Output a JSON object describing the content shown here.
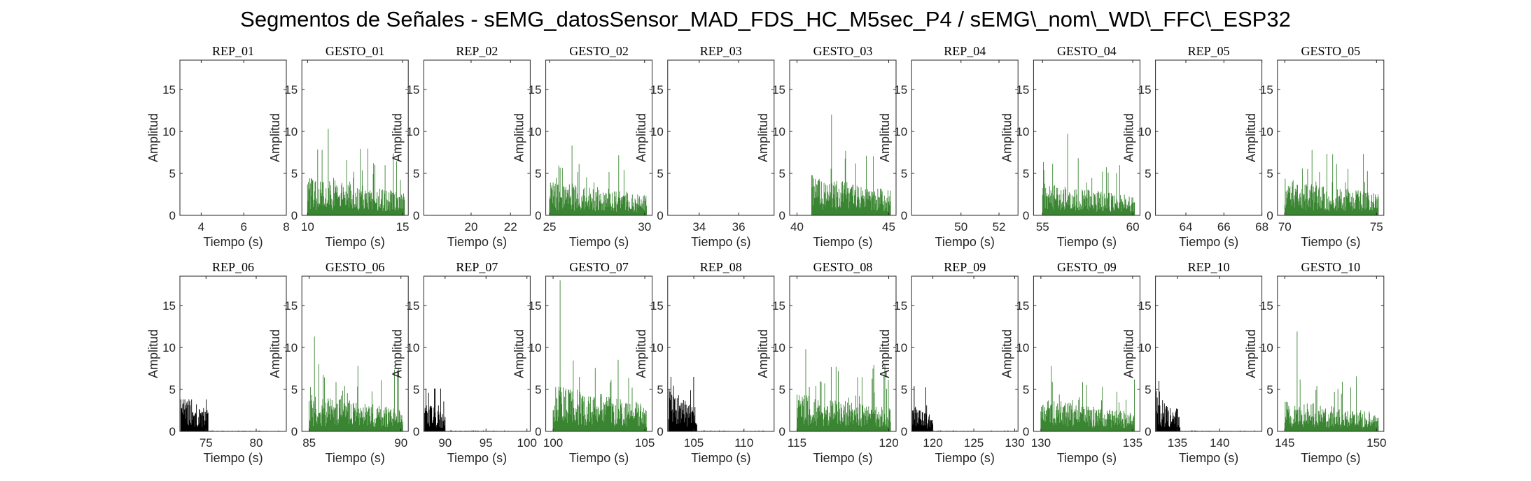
{
  "figure": {
    "title": "Segmentos de Señales - sEMG_datosSensor_MAD_FDS_HC_M5sec_P4 / sEMG\\_nom\\_WD\\_FFC\\_ESP32"
  },
  "colors": {
    "rep": "#000000",
    "gesto": "#3a8532",
    "axis": "#262626"
  },
  "chart_data": [
    {
      "type": "bar",
      "title": "REP_01",
      "kind": "rep",
      "xlabel": "Tiempo (s)",
      "ylabel": "Amplitud",
      "xlim": [
        3,
        8
      ],
      "ylim": [
        0,
        18.5
      ],
      "xticks": [
        4,
        6,
        8
      ],
      "yticks": [
        0,
        5,
        10,
        15
      ],
      "segments": []
    },
    {
      "type": "bar",
      "title": "GESTO_01",
      "kind": "gesto",
      "xlabel": "Tiempo (s)",
      "ylabel": "Amplitud",
      "xlim": [
        9.7,
        15.3
      ],
      "ylim": [
        0,
        18.5
      ],
      "xticks": [
        10,
        15
      ],
      "yticks": [
        0,
        5,
        10,
        15
      ],
      "segments": [
        {
          "x0": 10.0,
          "x1": 15.1,
          "peak": 10.3,
          "mean": 2.6
        }
      ]
    },
    {
      "type": "bar",
      "title": "REP_02",
      "kind": "rep",
      "xlabel": "Tiempo (s)",
      "ylabel": "Amplitud",
      "xlim": [
        17.6,
        23.0
      ],
      "ylim": [
        0,
        18.5
      ],
      "xticks": [
        20,
        22
      ],
      "yticks": [
        0,
        5,
        10,
        15
      ],
      "segments": []
    },
    {
      "type": "bar",
      "title": "GESTO_02",
      "kind": "gesto",
      "xlabel": "Tiempo (s)",
      "ylabel": "Amplitud",
      "xlim": [
        24.8,
        30.4
      ],
      "ylim": [
        0,
        18.5
      ],
      "xticks": [
        25,
        30
      ],
      "yticks": [
        0,
        5,
        10,
        15
      ],
      "segments": [
        {
          "x0": 25.0,
          "x1": 30.1,
          "peak": 8.3,
          "mean": 2.4
        }
      ]
    },
    {
      "type": "bar",
      "title": "REP_03",
      "kind": "rep",
      "xlabel": "Tiempo (s)",
      "ylabel": "Amplitud",
      "xlim": [
        32.4,
        37.8
      ],
      "ylim": [
        0,
        18.5
      ],
      "xticks": [
        34,
        36
      ],
      "yticks": [
        0,
        5,
        10,
        15
      ],
      "segments": []
    },
    {
      "type": "bar",
      "title": "GESTO_03",
      "kind": "gesto",
      "xlabel": "Tiempo (s)",
      "ylabel": "Amplitud",
      "xlim": [
        39.6,
        45.4
      ],
      "ylim": [
        0,
        18.5
      ],
      "xticks": [
        40,
        45
      ],
      "yticks": [
        0,
        5,
        10,
        15
      ],
      "segments": [
        {
          "x0": 40.8,
          "x1": 45.1,
          "peak": 12.0,
          "mean": 2.8
        }
      ]
    },
    {
      "type": "bar",
      "title": "REP_04",
      "kind": "rep",
      "xlabel": "Tiempo (s)",
      "ylabel": "Amplitud",
      "xlim": [
        47.4,
        53.0
      ],
      "ylim": [
        0,
        18.5
      ],
      "xticks": [
        50,
        52
      ],
      "yticks": [
        0,
        5,
        10,
        15
      ],
      "segments": []
    },
    {
      "type": "bar",
      "title": "GESTO_04",
      "kind": "gesto",
      "xlabel": "Tiempo (s)",
      "ylabel": "Amplitud",
      "xlim": [
        54.5,
        60.4
      ],
      "ylim": [
        0,
        18.5
      ],
      "xticks": [
        55,
        60
      ],
      "yticks": [
        0,
        5,
        10,
        15
      ],
      "segments": [
        {
          "x0": 55.0,
          "x1": 60.1,
          "peak": 9.7,
          "mean": 2.2
        }
      ]
    },
    {
      "type": "bar",
      "title": "REP_05",
      "kind": "rep",
      "xlabel": "Tiempo (s)",
      "ylabel": "Amplitud",
      "xlim": [
        62.4,
        68.0
      ],
      "ylim": [
        0,
        18.5
      ],
      "xticks": [
        64,
        66,
        68
      ],
      "yticks": [
        0,
        5,
        10,
        15
      ],
      "segments": []
    },
    {
      "type": "bar",
      "title": "GESTO_05",
      "kind": "gesto",
      "xlabel": "Tiempo (s)",
      "ylabel": "Amplitud",
      "xlim": [
        69.6,
        75.4
      ],
      "ylim": [
        0,
        18.5
      ],
      "xticks": [
        70,
        75
      ],
      "yticks": [
        0,
        5,
        10,
        15
      ],
      "segments": [
        {
          "x0": 70.0,
          "x1": 75.1,
          "peak": 7.8,
          "mean": 2.5
        }
      ]
    },
    {
      "type": "bar",
      "title": "REP_06",
      "kind": "rep",
      "xlabel": "Tiempo (s)",
      "ylabel": "Amplitud",
      "xlim": [
        72.4,
        83.0
      ],
      "ylim": [
        0,
        18.5
      ],
      "xticks": [
        75,
        80
      ],
      "yticks": [
        0,
        5,
        10,
        15
      ],
      "segments": [
        {
          "x0": 72.5,
          "x1": 75.2,
          "peak": 3.8,
          "mean": 2.4
        },
        {
          "x0": 75.2,
          "x1": 82.8,
          "peak": 0.12,
          "mean": 0.04
        }
      ]
    },
    {
      "type": "bar",
      "title": "GESTO_06",
      "kind": "gesto",
      "xlabel": "Tiempo (s)",
      "ylabel": "Amplitud",
      "xlim": [
        84.6,
        90.4
      ],
      "ylim": [
        0,
        18.5
      ],
      "xticks": [
        85,
        90
      ],
      "yticks": [
        0,
        5,
        10,
        15
      ],
      "segments": [
        {
          "x0": 85.0,
          "x1": 90.1,
          "peak": 11.3,
          "mean": 2.6
        }
      ]
    },
    {
      "type": "bar",
      "title": "REP_07",
      "kind": "rep",
      "xlabel": "Tiempo (s)",
      "ylabel": "Amplitud",
      "xlim": [
        87.4,
        100.4
      ],
      "ylim": [
        0,
        18.5
      ],
      "xticks": [
        90,
        95,
        100
      ],
      "yticks": [
        0,
        5,
        10,
        15
      ],
      "segments": [
        {
          "x0": 87.5,
          "x1": 90.0,
          "peak": 5.1,
          "mean": 2.0
        },
        {
          "x0": 90.0,
          "x1": 100.2,
          "peak": 0.12,
          "mean": 0.04
        }
      ]
    },
    {
      "type": "bar",
      "title": "GESTO_07",
      "kind": "gesto",
      "xlabel": "Tiempo (s)",
      "ylabel": "Amplitud",
      "xlim": [
        99.6,
        105.4
      ],
      "ylim": [
        0,
        18.5
      ],
      "xticks": [
        100,
        105
      ],
      "yticks": [
        0,
        5,
        10,
        15
      ],
      "segments": [
        {
          "x0": 100.0,
          "x1": 105.1,
          "peak": 18.0,
          "mean": 3.2
        }
      ]
    },
    {
      "type": "bar",
      "title": "REP_08",
      "kind": "rep",
      "xlabel": "Tiempo (s)",
      "ylabel": "Amplitud",
      "xlim": [
        102.4,
        113.0
      ],
      "ylim": [
        0,
        18.5
      ],
      "xticks": [
        105,
        110
      ],
      "yticks": [
        0,
        5,
        10,
        15
      ],
      "segments": [
        {
          "x0": 102.5,
          "x1": 105.3,
          "peak": 6.5,
          "mean": 3.0
        },
        {
          "x0": 105.3,
          "x1": 112.8,
          "peak": 0.12,
          "mean": 0.04
        }
      ]
    },
    {
      "type": "bar",
      "title": "GESTO_08",
      "kind": "gesto",
      "xlabel": "Tiempo (s)",
      "ylabel": "Amplitud",
      "xlim": [
        114.6,
        120.4
      ],
      "ylim": [
        0,
        18.5
      ],
      "xticks": [
        115,
        120
      ],
      "yticks": [
        0,
        5,
        10,
        15
      ],
      "segments": [
        {
          "x0": 115.0,
          "x1": 120.1,
          "peak": 9.8,
          "mean": 2.6
        }
      ]
    },
    {
      "type": "bar",
      "title": "REP_09",
      "kind": "rep",
      "xlabel": "Tiempo (s)",
      "ylabel": "Amplitud",
      "xlim": [
        117.4,
        130.4
      ],
      "ylim": [
        0,
        18.5
      ],
      "xticks": [
        120,
        125,
        130
      ],
      "yticks": [
        0,
        5,
        10,
        15
      ],
      "segments": [
        {
          "x0": 117.5,
          "x1": 120.0,
          "peak": 5.4,
          "mean": 1.8
        },
        {
          "x0": 120.0,
          "x1": 130.2,
          "peak": 0.12,
          "mean": 0.04
        }
      ]
    },
    {
      "type": "bar",
      "title": "GESTO_09",
      "kind": "gesto",
      "xlabel": "Tiempo (s)",
      "ylabel": "Amplitud",
      "xlim": [
        129.6,
        135.4
      ],
      "ylim": [
        0,
        18.5
      ],
      "xticks": [
        130,
        135
      ],
      "yticks": [
        0,
        5,
        10,
        15
      ],
      "segments": [
        {
          "x0": 130.0,
          "x1": 135.1,
          "peak": 7.8,
          "mean": 2.2
        }
      ]
    },
    {
      "type": "bar",
      "title": "REP_10",
      "kind": "rep",
      "xlabel": "Tiempo (s)",
      "ylabel": "Amplitud",
      "xlim": [
        132.4,
        145.0
      ],
      "ylim": [
        0,
        18.5
      ],
      "xticks": [
        135,
        140
      ],
      "yticks": [
        0,
        5,
        10,
        15
      ],
      "segments": [
        {
          "x0": 132.5,
          "x1": 135.3,
          "peak": 6.0,
          "mean": 2.4
        },
        {
          "x0": 135.3,
          "x1": 144.8,
          "peak": 0.12,
          "mean": 0.04
        }
      ]
    },
    {
      "type": "bar",
      "title": "GESTO_10",
      "kind": "gesto",
      "xlabel": "Tiempo (s)",
      "ylabel": "Amplitud",
      "xlim": [
        144.6,
        150.4
      ],
      "ylim": [
        0,
        18.5
      ],
      "xticks": [
        145,
        150
      ],
      "yticks": [
        0,
        5,
        10,
        15
      ],
      "segments": [
        {
          "x0": 145.0,
          "x1": 150.1,
          "peak": 11.9,
          "mean": 2.2
        }
      ]
    }
  ]
}
